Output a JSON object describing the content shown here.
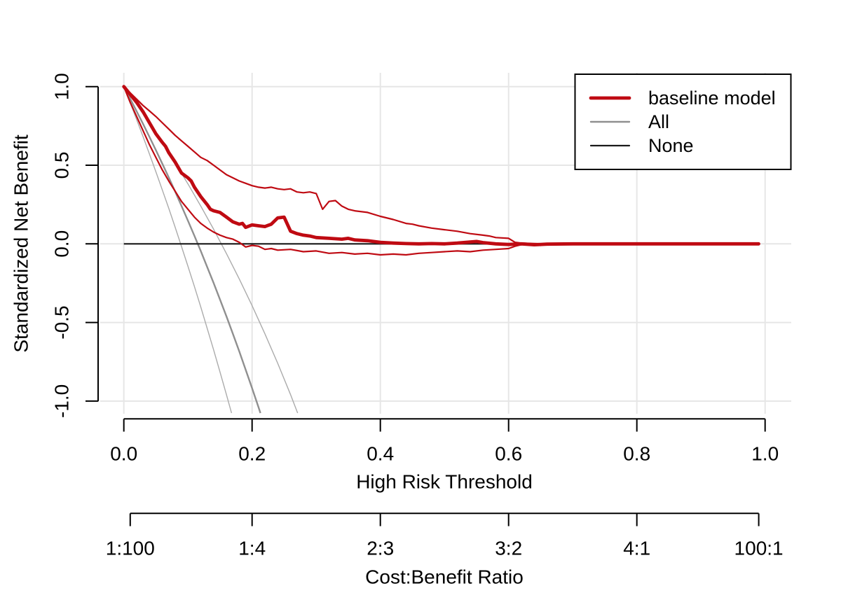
{
  "figure": {
    "background": "#ffffff",
    "colors": {
      "model_red": "#bf0a12",
      "all_gray": "#8f8f8f",
      "all_ci_gray": "#ababab",
      "none_black": "#1a1a1a",
      "grid_gray": "#e6e6e6",
      "axis_black": "#000000"
    },
    "legend": {
      "items": [
        {
          "label": "baseline model",
          "series": "baseline"
        },
        {
          "label": "All",
          "series": "all"
        },
        {
          "label": "None",
          "series": "none"
        }
      ]
    }
  },
  "chart_data": {
    "type": "line",
    "title": "",
    "xlabel": "High Risk Threshold",
    "ylabel": "Standardized Net Benefit",
    "xlim": [
      0,
      1
    ],
    "ylim": [
      -1,
      1
    ],
    "grid": true,
    "legend_position": "top-right",
    "x_ticks": [
      0.0,
      0.2,
      0.4,
      0.6,
      0.8,
      1.0
    ],
    "x_tick_labels": [
      "0.0",
      "0.2",
      "0.4",
      "0.6",
      "0.8",
      "1.0"
    ],
    "y_ticks": [
      1.0,
      0.5,
      0.0,
      -0.5,
      -1.0
    ],
    "y_tick_labels": [
      "1.0",
      "0.5",
      "0.0",
      "-0.5",
      "-1.0"
    ],
    "secondary_x_axis": {
      "label": "Cost:Benefit Ratio",
      "tick_labels": [
        "1:100",
        "1:4",
        "2:3",
        "3:2",
        "4:1",
        "100:1"
      ],
      "tick_positions": [
        0.0099,
        0.2,
        0.4,
        0.6,
        0.8,
        0.9901
      ]
    },
    "series": [
      {
        "id": "all-lower-ci",
        "name": "All (lower CI)",
        "color": "#ababab",
        "width": 1.4,
        "x": [
          0,
          0.01,
          0.02,
          0.03,
          0.04,
          0.05,
          0.06,
          0.07,
          0.08,
          0.09,
          0.1,
          0.11,
          0.12,
          0.13,
          0.14,
          0.15,
          0.16,
          0.168
        ],
        "y": [
          1.0,
          0.896,
          0.79,
          0.682,
          0.571,
          0.459,
          0.343,
          0.226,
          0.106,
          -0.017,
          -0.143,
          -0.271,
          -0.402,
          -0.537,
          -0.674,
          -0.815,
          -0.959,
          -1.076
        ]
      },
      {
        "id": "all-upper-ci",
        "name": "All (upper CI)",
        "color": "#ababab",
        "width": 1.4,
        "x": [
          0,
          0.02,
          0.04,
          0.06,
          0.08,
          0.1,
          0.12,
          0.14,
          0.16,
          0.18,
          0.2,
          0.22,
          0.24,
          0.26,
          0.271
        ],
        "y": [
          1.0,
          0.886,
          0.768,
          0.644,
          0.515,
          0.381,
          0.24,
          0.093,
          -0.062,
          -0.223,
          -0.393,
          -0.572,
          -0.76,
          -0.959,
          -1.076
        ]
      },
      {
        "id": "all",
        "name": "All",
        "color": "#8f8f8f",
        "width": 2.4,
        "x": [
          0,
          0.01,
          0.02,
          0.03,
          0.04,
          0.05,
          0.06,
          0.07,
          0.08,
          0.09,
          0.1,
          0.11,
          0.12,
          0.13,
          0.14,
          0.15,
          0.16,
          0.17,
          0.18,
          0.19,
          0.2,
          0.21,
          0.213
        ],
        "y": [
          1.0,
          0.922,
          0.843,
          0.763,
          0.68,
          0.596,
          0.51,
          0.422,
          0.333,
          0.241,
          0.147,
          0.051,
          -0.046,
          -0.147,
          -0.249,
          -0.354,
          -0.461,
          -0.572,
          -0.684,
          -0.8,
          -0.918,
          -1.039,
          -1.076
        ]
      },
      {
        "id": "none",
        "name": "None",
        "color": "#1a1a1a",
        "width": 2.2,
        "x": [
          0,
          0.99
        ],
        "y": [
          0,
          0
        ]
      },
      {
        "id": "baseline-lower-ci",
        "name": "baseline model (lower CI)",
        "color": "#bf0a12",
        "width": 2.2,
        "x": [
          0,
          0.01,
          0.02,
          0.03,
          0.04,
          0.05,
          0.06,
          0.07,
          0.08,
          0.09,
          0.1,
          0.11,
          0.12,
          0.13,
          0.14,
          0.15,
          0.16,
          0.17,
          0.18,
          0.19,
          0.2,
          0.21,
          0.22,
          0.23,
          0.24,
          0.26,
          0.28,
          0.3,
          0.32,
          0.34,
          0.36,
          0.38,
          0.4,
          0.42,
          0.44,
          0.46,
          0.48,
          0.5,
          0.52,
          0.54,
          0.56,
          0.58,
          0.6,
          0.61,
          0.62,
          0.64,
          0.65,
          0.66,
          0.7,
          0.75,
          0.8,
          0.85,
          0.9,
          0.95,
          0.99
        ],
        "y": [
          1.0,
          0.9,
          0.81,
          0.72,
          0.63,
          0.55,
          0.47,
          0.4,
          0.335,
          0.27,
          0.22,
          0.17,
          0.13,
          0.1,
          0.075,
          0.055,
          0.04,
          0.03,
          0.01,
          -0.02,
          -0.01,
          -0.015,
          -0.035,
          -0.03,
          -0.04,
          -0.035,
          -0.05,
          -0.045,
          -0.06,
          -0.055,
          -0.065,
          -0.06,
          -0.07,
          -0.065,
          -0.07,
          -0.06,
          -0.055,
          -0.05,
          -0.045,
          -0.05,
          -0.04,
          -0.035,
          -0.03,
          -0.015,
          -0.005,
          0.0,
          -0.01,
          0.0,
          0.0,
          0.0,
          0.0,
          0.0,
          0.0,
          0.0,
          0.0
        ]
      },
      {
        "id": "baseline-upper-ci",
        "name": "baseline model (upper CI)",
        "color": "#bf0a12",
        "width": 2.2,
        "x": [
          0,
          0.01,
          0.02,
          0.03,
          0.04,
          0.05,
          0.06,
          0.07,
          0.08,
          0.09,
          0.1,
          0.11,
          0.12,
          0.13,
          0.14,
          0.15,
          0.16,
          0.17,
          0.18,
          0.19,
          0.2,
          0.21,
          0.22,
          0.23,
          0.24,
          0.25,
          0.26,
          0.27,
          0.28,
          0.29,
          0.3,
          0.31,
          0.32,
          0.33,
          0.34,
          0.35,
          0.36,
          0.38,
          0.4,
          0.42,
          0.44,
          0.45,
          0.46,
          0.48,
          0.5,
          0.52,
          0.54,
          0.56,
          0.57,
          0.58,
          0.6,
          0.61,
          0.62,
          0.64,
          0.66,
          0.7,
          0.75,
          0.8,
          0.85,
          0.9,
          0.95,
          0.99
        ],
        "y": [
          1.0,
          0.96,
          0.92,
          0.88,
          0.845,
          0.81,
          0.77,
          0.73,
          0.69,
          0.655,
          0.62,
          0.585,
          0.55,
          0.53,
          0.5,
          0.47,
          0.44,
          0.42,
          0.4,
          0.385,
          0.37,
          0.36,
          0.355,
          0.36,
          0.35,
          0.345,
          0.35,
          0.33,
          0.325,
          0.33,
          0.32,
          0.22,
          0.27,
          0.275,
          0.24,
          0.22,
          0.21,
          0.2,
          0.175,
          0.155,
          0.13,
          0.125,
          0.115,
          0.1,
          0.09,
          0.08,
          0.065,
          0.055,
          0.05,
          0.04,
          0.035,
          0.01,
          0.005,
          0.002,
          0.0,
          0.0,
          0.0,
          0.0,
          0.0,
          0.0,
          0.0,
          0.0
        ]
      },
      {
        "id": "baseline",
        "name": "baseline model",
        "color": "#bf0a12",
        "width": 4.8,
        "x": [
          0,
          0.01,
          0.02,
          0.03,
          0.04,
          0.05,
          0.06,
          0.065,
          0.07,
          0.08,
          0.09,
          0.1,
          0.105,
          0.11,
          0.12,
          0.13,
          0.135,
          0.14,
          0.15,
          0.16,
          0.17,
          0.18,
          0.185,
          0.19,
          0.2,
          0.21,
          0.22,
          0.23,
          0.24,
          0.25,
          0.26,
          0.27,
          0.28,
          0.29,
          0.3,
          0.32,
          0.34,
          0.35,
          0.36,
          0.38,
          0.4,
          0.42,
          0.44,
          0.46,
          0.48,
          0.5,
          0.52,
          0.54,
          0.55,
          0.56,
          0.58,
          0.6,
          0.62,
          0.64,
          0.66,
          0.7,
          0.75,
          0.8,
          0.85,
          0.9,
          0.95,
          0.99
        ],
        "y": [
          1.0,
          0.95,
          0.9,
          0.84,
          0.77,
          0.7,
          0.645,
          0.62,
          0.58,
          0.52,
          0.45,
          0.42,
          0.4,
          0.36,
          0.3,
          0.25,
          0.22,
          0.21,
          0.2,
          0.17,
          0.14,
          0.125,
          0.13,
          0.105,
          0.12,
          0.115,
          0.11,
          0.125,
          0.165,
          0.17,
          0.08,
          0.065,
          0.055,
          0.05,
          0.04,
          0.035,
          0.03,
          0.035,
          0.025,
          0.02,
          0.01,
          0.005,
          0.002,
          0.0,
          0.002,
          0.0,
          0.005,
          0.012,
          0.015,
          0.008,
          0.0,
          -0.004,
          0.0,
          -0.006,
          -0.002,
          0.0,
          0.0,
          0.0,
          0.0,
          0.0,
          0.0,
          0.0
        ]
      }
    ]
  }
}
